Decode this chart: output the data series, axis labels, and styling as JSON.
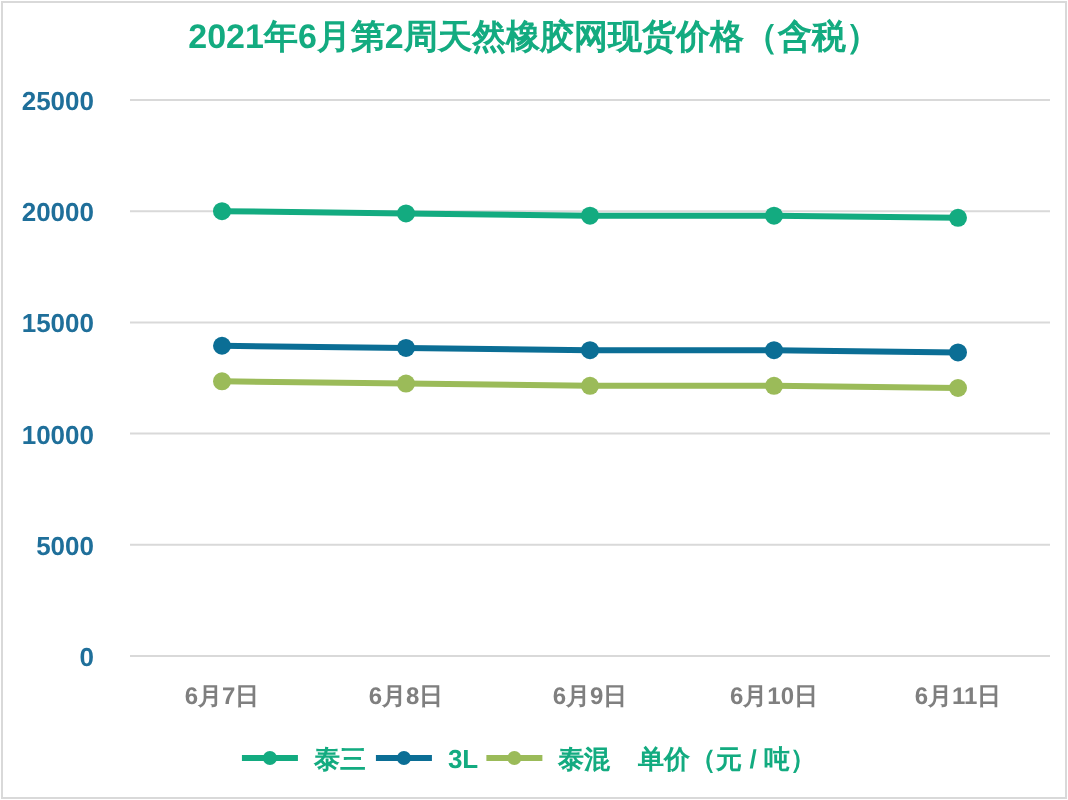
{
  "chart_data": {
    "type": "line",
    "title": "2021年6月第2周天然橡胶网现货价格（含税）",
    "categories": [
      "6月7日",
      "6月8日",
      "6月9日",
      "6月10日",
      "6月11日"
    ],
    "series": [
      {
        "name": "泰三",
        "color": "#13ab80",
        "values": [
          20000,
          19900,
          19800,
          19800,
          19700
        ]
      },
      {
        "name": "3L",
        "color": "#0b6e95",
        "values": [
          13950,
          13850,
          13750,
          13750,
          13650
        ]
      },
      {
        "name": "泰混",
        "color": "#9bbb59",
        "values": [
          12350,
          12250,
          12150,
          12150,
          12050
        ]
      }
    ],
    "legend_title": "单价（元 / 吨）",
    "ylim": [
      0,
      25000
    ],
    "yticks": [
      0,
      5000,
      10000,
      15000,
      20000,
      25000
    ],
    "grid": "y",
    "legend": "bottom",
    "marker": "circle",
    "line_style": "solid"
  }
}
